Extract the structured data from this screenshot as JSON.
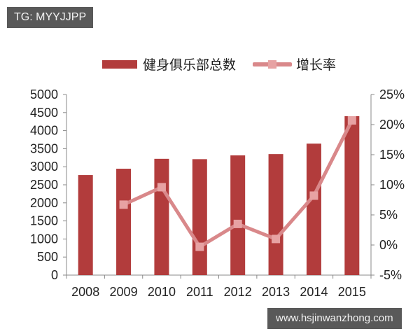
{
  "watermarks": {
    "top_left": "TG: MYYJJPP",
    "bottom_right": "www.hsjinwanzhong.com"
  },
  "legend": {
    "bar_label": "健身俱乐部总数",
    "line_label": "增长率"
  },
  "colors": {
    "bar": "#b23c3c",
    "line": "#d9888a",
    "marker": "#e7a2a3",
    "axis": "#888888",
    "text": "#222222",
    "watermark_bg": "#595959"
  },
  "chart_data": {
    "type": "bar+line",
    "title": "",
    "categories": [
      "2008",
      "2009",
      "2010",
      "2011",
      "2012",
      "2013",
      "2014",
      "2015"
    ],
    "series": [
      {
        "name": "健身俱乐部总数",
        "type": "bar",
        "axis": "left",
        "values": [
          2770,
          2945,
          3220,
          3210,
          3315,
          3350,
          3640,
          4400
        ]
      },
      {
        "name": "增长率",
        "type": "line",
        "axis": "right",
        "unit": "%",
        "values": [
          null,
          6.7,
          9.6,
          -0.3,
          3.5,
          1.0,
          8.2,
          20.7
        ]
      }
    ],
    "left_axis": {
      "ylim": [
        0,
        5000
      ],
      "ticks": [
        "0",
        "500",
        "1000",
        "1500",
        "2000",
        "2500",
        "3000",
        "3500",
        "4000",
        "4500",
        "5000"
      ]
    },
    "right_axis": {
      "ylim": [
        -5,
        25
      ],
      "ticks": [
        "-5%",
        "0%",
        "5%",
        "10%",
        "15%",
        "20%",
        "25%"
      ]
    },
    "xlabel": "",
    "ylabel": "",
    "grid": false,
    "legend_position": "top"
  }
}
